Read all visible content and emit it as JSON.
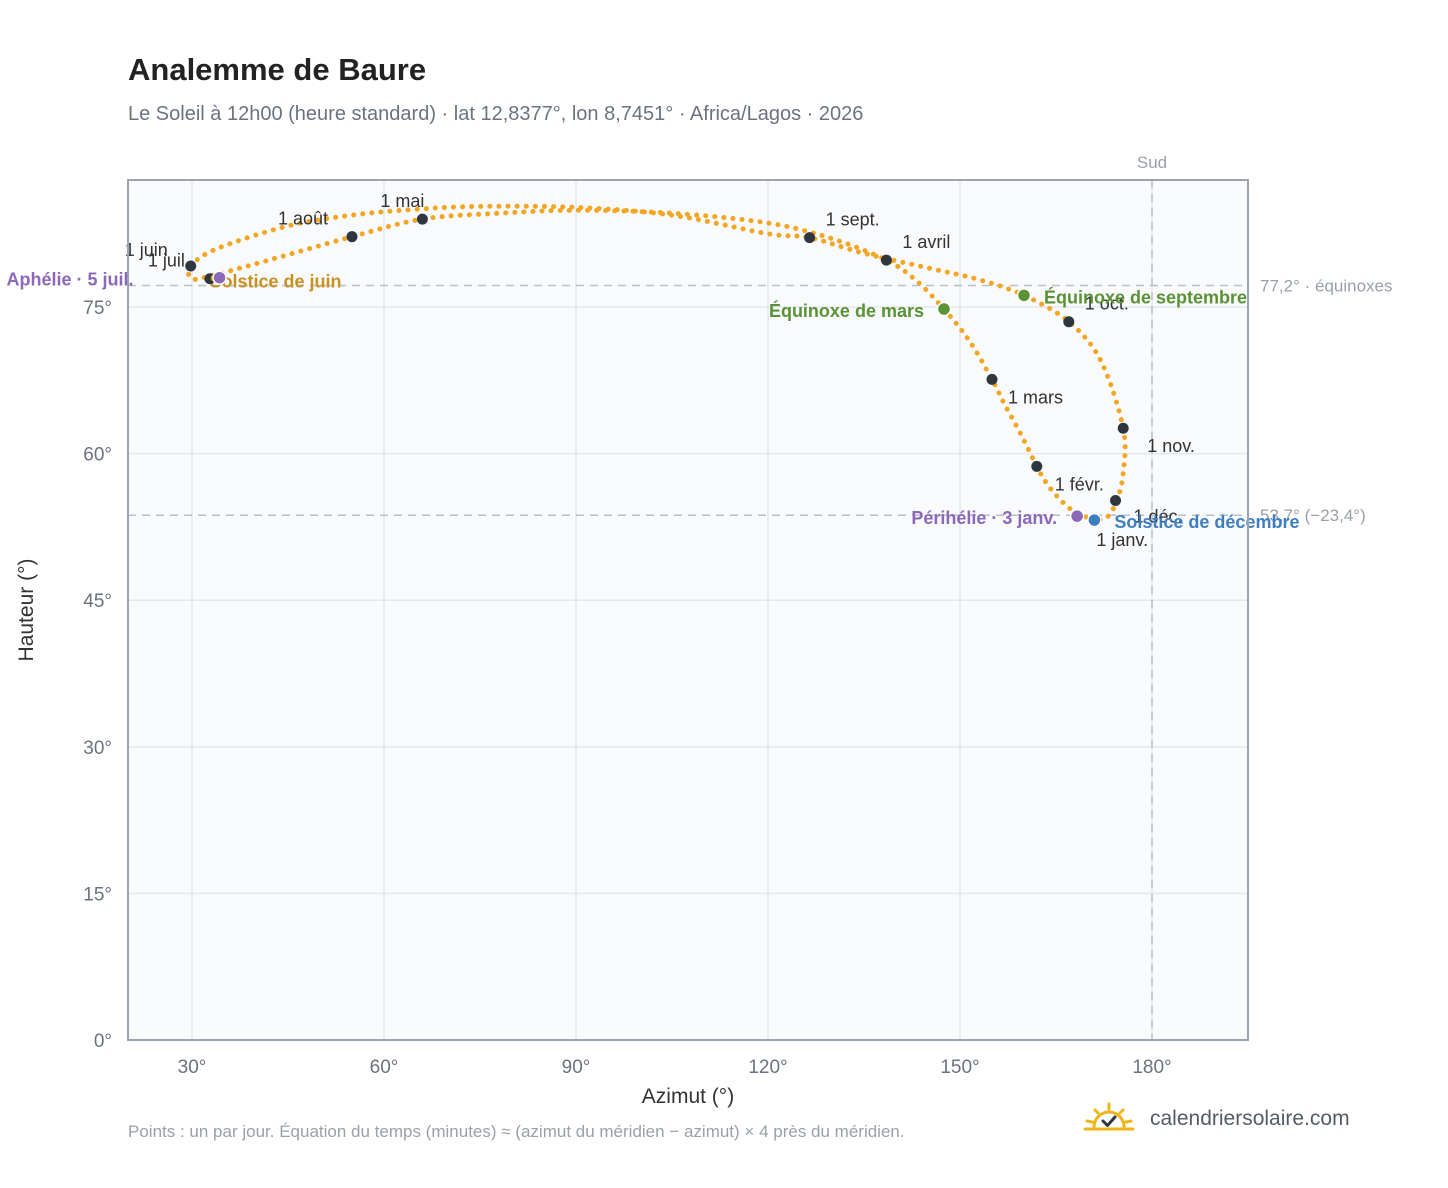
{
  "header": {
    "title": "Analemme de Baure",
    "subtitle": "Le Soleil à 12h00 (heure standard) · lat 12,8377°, lon 8,7451° · Africa/Lagos · 2026"
  },
  "footer": {
    "note": "Points : un par jour. Équation du temps (minutes) ≈ (azimut du méridien − azimut) × 4 près du méridien.",
    "brand": "calendriersolaire.com",
    "brand_icon": "sun-check-icon"
  },
  "colors": {
    "curve": "#f2a623",
    "month_marker": "#2f3640",
    "equinox": "#5a9236",
    "june_solstice": "#c9901f",
    "december_solstice": "#3f7fc1",
    "apsis": "#8b68b8",
    "grid": "#e3e7ee",
    "plot_bg": "#f8fafc",
    "frame": "#9aa3b0",
    "ref_line": "#b8c0cc"
  },
  "chart_data": {
    "type": "scatter",
    "xlabel": "Azimut (°)",
    "ylabel": "Hauteur (°)",
    "xlim": [
      20,
      195
    ],
    "ylim": [
      0,
      88
    ],
    "xticks": [
      30,
      60,
      90,
      120,
      150,
      180
    ],
    "yticks": [
      0,
      15,
      30,
      45,
      60,
      75
    ],
    "x_tick_labels": [
      "30°",
      "60°",
      "90°",
      "120°",
      "150°",
      "180°"
    ],
    "y_tick_labels": [
      "0°",
      "15°",
      "30°",
      "45°",
      "60°",
      "75°"
    ],
    "grid": true,
    "meridian": {
      "azimuth": 180,
      "label": "Sud"
    },
    "reference_lines": [
      {
        "altitude": 77.2,
        "label": "77,2° · équinoxes"
      },
      {
        "altitude": 53.7,
        "label": "53,7° (−23,4°)"
      }
    ],
    "daily_path": [
      [
        171.0,
        53.2
      ],
      [
        168.0,
        54.0
      ],
      [
        165.5,
        55.4
      ],
      [
        163.5,
        57.0
      ],
      [
        162.0,
        58.7
      ],
      [
        159.5,
        62.0
      ],
      [
        157.0,
        65.0
      ],
      [
        155.0,
        67.6
      ],
      [
        151.5,
        71.5
      ],
      [
        147.5,
        74.8
      ],
      [
        143.0,
        77.8
      ],
      [
        138.5,
        79.8
      ],
      [
        130.0,
        82.0
      ],
      [
        120.0,
        83.6
      ],
      [
        105.0,
        84.6
      ],
      [
        90.0,
        84.9
      ],
      [
        78.0,
        84.6
      ],
      [
        66.0,
        84.0
      ],
      [
        55.0,
        82.2
      ],
      [
        42.0,
        79.8
      ],
      [
        33.0,
        78.2
      ],
      [
        30.0,
        77.9
      ],
      [
        29.8,
        79.2
      ],
      [
        34.0,
        81.0
      ],
      [
        45.0,
        83.3
      ],
      [
        55.0,
        84.4
      ],
      [
        65.0,
        85.0
      ],
      [
        75.0,
        85.3
      ],
      [
        90.0,
        85.2
      ],
      [
        105.0,
        84.4
      ],
      [
        120.0,
        82.5
      ],
      [
        126.5,
        82.1
      ],
      [
        135.0,
        80.5
      ],
      [
        145.0,
        79.0
      ],
      [
        153.0,
        77.8
      ],
      [
        160.0,
        76.2
      ],
      [
        167.0,
        73.5
      ],
      [
        172.0,
        69.5
      ],
      [
        175.5,
        62.6
      ],
      [
        175.5,
        58.0
      ],
      [
        174.5,
        55.2
      ],
      [
        173.0,
        53.5
      ],
      [
        171.0,
        53.2
      ]
    ],
    "month_markers": [
      {
        "label": "1 janv.",
        "az": 171.0,
        "alt": 53.2
      },
      {
        "label": "1 févr.",
        "az": 162.0,
        "alt": 58.7
      },
      {
        "label": "1 mars",
        "az": 155.0,
        "alt": 67.6
      },
      {
        "label": "1 avril",
        "az": 138.5,
        "alt": 79.8
      },
      {
        "label": "1 mai",
        "az": 66.0,
        "alt": 84.0
      },
      {
        "label": "1 juin",
        "az": 29.8,
        "alt": 79.2
      },
      {
        "label": "1 juil.",
        "az": 32.8,
        "alt": 77.9
      },
      {
        "label": "1 août",
        "az": 55.0,
        "alt": 82.2
      },
      {
        "label": "1 sept.",
        "az": 126.5,
        "alt": 82.1
      },
      {
        "label": "1 oct.",
        "az": 167.0,
        "alt": 73.5
      },
      {
        "label": "1 nov.",
        "az": 175.5,
        "alt": 62.6
      },
      {
        "label": "1 déc.",
        "az": 174.3,
        "alt": 55.2
      }
    ],
    "events": [
      {
        "label": "Équinoxe de mars",
        "az": 147.5,
        "alt": 74.8,
        "color": "#5a9236",
        "anchor": "end"
      },
      {
        "label": "Équinoxe de septembre",
        "az": 160.0,
        "alt": 76.2,
        "color": "#5a9236",
        "anchor": "start"
      },
      {
        "label": "Solstice de juin",
        "az": 34.3,
        "alt": 78.0,
        "color": "#c9901f",
        "anchor": "start"
      },
      {
        "label": "Solstice de décembre",
        "az": 171.0,
        "alt": 53.2,
        "color": "#3f7fc1",
        "anchor": "start"
      },
      {
        "label": "Aphélie · 5 juil.",
        "az": 34.3,
        "alt": 78.0,
        "color": "#8b68b8",
        "anchor": "end"
      },
      {
        "label": "Périhélie · 3 janv.",
        "az": 168.3,
        "alt": 53.6,
        "color": "#8b68b8",
        "anchor": "end"
      }
    ]
  }
}
